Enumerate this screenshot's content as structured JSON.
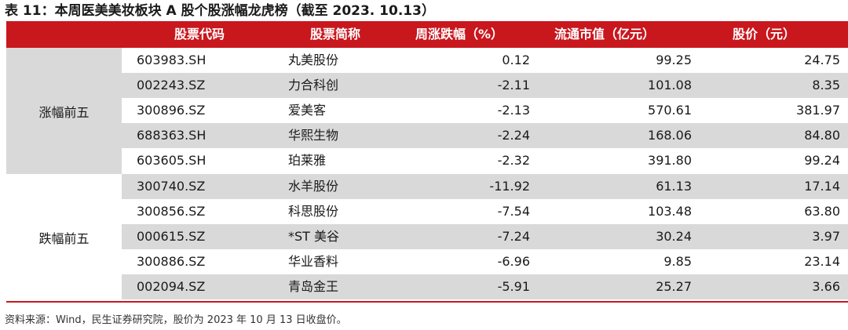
{
  "title": "表 11：本周医美美妆板块 A 股个股涨幅龙虎榜（截至 2023. 10.13）",
  "headers": [
    "股票代码",
    "股票简称",
    "周涨跌幅（%）",
    "流通市值（亿元）",
    "股价（元）"
  ],
  "colors": {
    "accent": "#c9171e",
    "stripe": "#d9d9d9"
  },
  "groups": [
    {
      "label": "涨幅前五",
      "rows": [
        {
          "code": "603983.SH",
          "name": "丸美股份",
          "change": "0.12",
          "cap": "99.25",
          "price": "24.75"
        },
        {
          "code": "002243.SZ",
          "name": "力合科创",
          "change": "-2.11",
          "cap": "101.08",
          "price": "8.35"
        },
        {
          "code": "300896.SZ",
          "name": "爱美客",
          "change": "-2.13",
          "cap": "570.61",
          "price": "381.97"
        },
        {
          "code": "688363.SH",
          "name": "华熙生物",
          "change": "-2.24",
          "cap": "168.06",
          "price": "84.80"
        },
        {
          "code": "603605.SH",
          "name": "珀莱雅",
          "change": "-2.32",
          "cap": "391.80",
          "price": "99.24"
        }
      ]
    },
    {
      "label": "跌幅前五",
      "rows": [
        {
          "code": "300740.SZ",
          "name": "水羊股份",
          "change": "-11.92",
          "cap": "61.13",
          "price": "17.14"
        },
        {
          "code": "300856.SZ",
          "name": "科思股份",
          "change": "-7.54",
          "cap": "103.48",
          "price": "63.80"
        },
        {
          "code": "000615.SZ",
          "name": "*ST 美谷",
          "change": "-7.24",
          "cap": "30.24",
          "price": "3.97"
        },
        {
          "code": "300886.SZ",
          "name": "华业香料",
          "change": "-6.96",
          "cap": "9.85",
          "price": "23.14"
        },
        {
          "code": "002094.SZ",
          "name": "青岛金王",
          "change": "-5.91",
          "cap": "25.27",
          "price": "3.66"
        }
      ]
    }
  ],
  "source": "资料来源：Wind，民生证券研究院，股价为 2023 年 10 月 13 日收盘价。"
}
